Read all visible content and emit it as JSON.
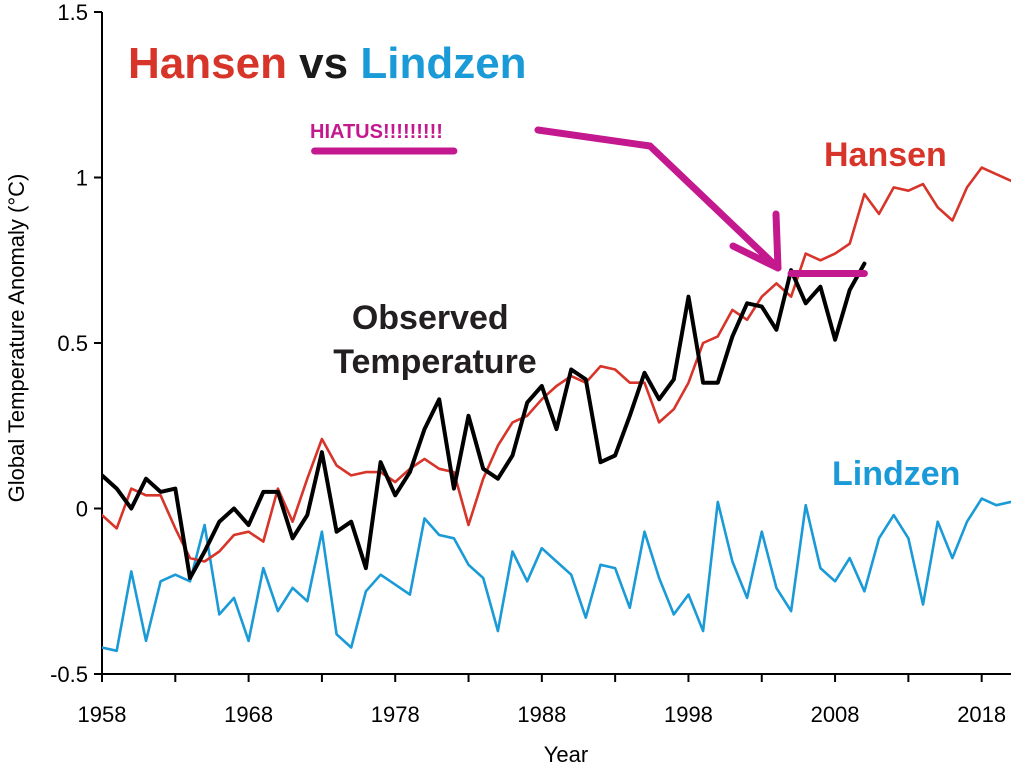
{
  "chart_data": {
    "type": "line",
    "title_parts": [
      {
        "text": "Hansen",
        "color": "#d7342a"
      },
      {
        "text": " vs ",
        "color": "#1a1a1a"
      },
      {
        "text": "Lindzen",
        "color": "#1a9ad6"
      }
    ],
    "xlabel": "Year",
    "ylabel": "Global Temperature Anomaly (°C)",
    "xlim": [
      1958,
      2020
    ],
    "ylim": [
      -0.5,
      1.5
    ],
    "xticks": [
      1958,
      1968,
      1978,
      1988,
      1998,
      2008,
      2018
    ],
    "xtick_labels": [
      "1958",
      "1968",
      "1978",
      "1988",
      "1998",
      "2008",
      "2018"
    ],
    "yticks": [
      -0.5,
      0,
      0.5,
      1,
      1.5
    ],
    "ytick_labels": [
      "-0.5",
      "0",
      "0.5",
      "1",
      "1.5"
    ],
    "grid": false,
    "series": [
      {
        "key": "hansen",
        "name": "Hansen",
        "color": "#d7342a",
        "x": [
          1958,
          1959,
          1960,
          1961,
          1962,
          1963,
          1964,
          1965,
          1966,
          1967,
          1968,
          1969,
          1970,
          1971,
          1972,
          1973,
          1974,
          1975,
          1976,
          1977,
          1978,
          1979,
          1980,
          1981,
          1982,
          1983,
          1984,
          1985,
          1986,
          1987,
          1988,
          1989,
          1990,
          1991,
          1992,
          1993,
          1994,
          1995,
          1996,
          1997,
          1998,
          1999,
          2000,
          2001,
          2002,
          2003,
          2004,
          2005,
          2006,
          2007,
          2008,
          2009,
          2010,
          2011,
          2012,
          2013,
          2014,
          2015,
          2016,
          2017,
          2018,
          2019,
          2020
        ],
        "values": [
          -0.02,
          -0.06,
          0.06,
          0.04,
          0.04,
          -0.06,
          -0.15,
          -0.16,
          -0.13,
          -0.08,
          -0.07,
          -0.1,
          0.06,
          -0.04,
          0.09,
          0.21,
          0.13,
          0.1,
          0.11,
          0.11,
          0.08,
          0.12,
          0.15,
          0.12,
          0.11,
          -0.05,
          0.09,
          0.19,
          0.26,
          0.28,
          0.33,
          0.37,
          0.4,
          0.38,
          0.43,
          0.42,
          0.38,
          0.38,
          0.26,
          0.3,
          0.38,
          0.5,
          0.52,
          0.6,
          0.57,
          0.64,
          0.68,
          0.64,
          0.77,
          0.75,
          0.77,
          0.8,
          0.95,
          0.89,
          0.97,
          0.96,
          0.98,
          0.91,
          0.87,
          0.97,
          1.03,
          1.01,
          0.99
        ]
      },
      {
        "key": "observed",
        "name": "Observed Temperature",
        "color": "#000000",
        "x": [
          1958,
          1959,
          1960,
          1961,
          1962,
          1963,
          1964,
          1965,
          1966,
          1967,
          1968,
          1969,
          1970,
          1971,
          1972,
          1973,
          1974,
          1975,
          1976,
          1977,
          1978,
          1979,
          1980,
          1981,
          1982,
          1983,
          1984,
          1985,
          1986,
          1987,
          1988,
          1989,
          1990,
          1991,
          1992,
          1993,
          1994,
          1995,
          1996,
          1997,
          1998,
          1999,
          2000,
          2001,
          2002,
          2003,
          2004,
          2005,
          2006,
          2007,
          2008,
          2009,
          2010
        ],
        "values": [
          0.1,
          0.06,
          0.0,
          0.09,
          0.05,
          0.06,
          -0.21,
          -0.13,
          -0.04,
          0.0,
          -0.05,
          0.05,
          0.05,
          -0.09,
          -0.02,
          0.17,
          -0.07,
          -0.04,
          -0.18,
          0.14,
          0.04,
          0.11,
          0.24,
          0.33,
          0.06,
          0.28,
          0.12,
          0.09,
          0.16,
          0.32,
          0.37,
          0.24,
          0.42,
          0.39,
          0.14,
          0.16,
          0.28,
          0.41,
          0.33,
          0.39,
          0.64,
          0.38,
          0.38,
          0.52,
          0.62,
          0.61,
          0.54,
          0.72,
          0.62,
          0.67,
          0.51,
          0.66,
          0.74
        ]
      },
      {
        "key": "lindzen",
        "name": "Lindzen",
        "color": "#1a9ad6",
        "x": [
          1958,
          1959,
          1960,
          1961,
          1962,
          1963,
          1964,
          1965,
          1966,
          1967,
          1968,
          1969,
          1970,
          1971,
          1972,
          1973,
          1974,
          1975,
          1976,
          1977,
          1978,
          1979,
          1980,
          1981,
          1982,
          1983,
          1984,
          1985,
          1986,
          1987,
          1988,
          1989,
          1990,
          1991,
          1992,
          1993,
          1994,
          1995,
          1996,
          1997,
          1998,
          1999,
          2000,
          2001,
          2002,
          2003,
          2004,
          2005,
          2006,
          2007,
          2008,
          2009,
          2010,
          2011,
          2012,
          2013,
          2014,
          2015,
          2016,
          2017,
          2018,
          2019,
          2020
        ],
        "values": [
          -0.42,
          -0.43,
          -0.19,
          -0.4,
          -0.22,
          -0.2,
          -0.22,
          -0.05,
          -0.32,
          -0.27,
          -0.4,
          -0.18,
          -0.31,
          -0.24,
          -0.28,
          -0.07,
          -0.38,
          -0.42,
          -0.25,
          -0.2,
          -0.23,
          -0.26,
          -0.03,
          -0.08,
          -0.09,
          -0.17,
          -0.21,
          -0.37,
          -0.13,
          -0.22,
          -0.12,
          -0.16,
          -0.2,
          -0.33,
          -0.17,
          -0.18,
          -0.3,
          -0.07,
          -0.21,
          -0.32,
          -0.26,
          -0.37,
          0.02,
          -0.16,
          -0.27,
          -0.07,
          -0.24,
          -0.31,
          0.01,
          -0.18,
          -0.22,
          -0.15,
          -0.25,
          -0.09,
          -0.02,
          -0.09,
          -0.29,
          -0.04,
          -0.15,
          -0.04,
          0.03,
          0.01,
          0.02
        ]
      }
    ],
    "annotations": {
      "observed_label_lines": [
        "Observed",
        "Temperature"
      ],
      "hiatus_text": "HIATUS!!!!!!!!!",
      "annotation_color": "#c4188f",
      "hiatus_segment": {
        "x": [
          2005,
          2010
        ],
        "y": 0.71
      },
      "hiatus_example_line": {
        "x": [
          1972.5,
          1982
        ],
        "y": 1.08
      }
    }
  }
}
